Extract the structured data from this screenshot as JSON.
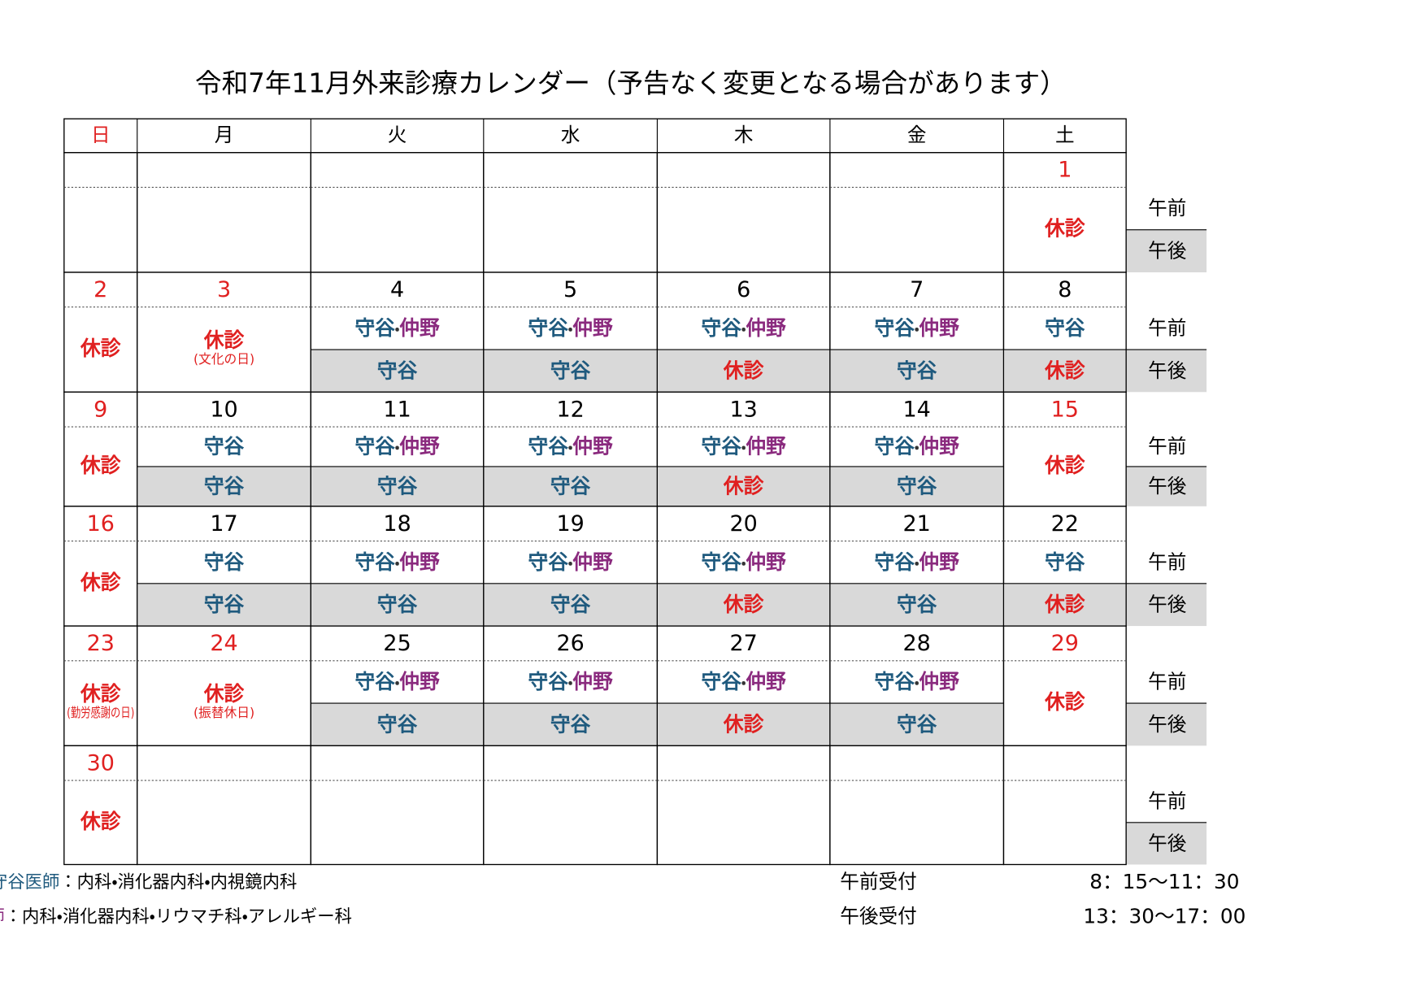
{
  "header": {
    "title": "令和7年11月外来診療カレンダー（予告なく変更となる場合があります）"
  },
  "weekdays": [
    "日",
    "月",
    "火",
    "水",
    "木",
    "金",
    "土"
  ],
  "session_labels": [
    "午前",
    "午後"
  ],
  "colors": {
    "holiday": "#e02020",
    "shade": "#d9d9d9"
  },
  "doctors": [
    {
      "short": "守谷",
      "name": "守谷医師",
      "depts": "：内科・消化器内科・内視鏡内科",
      "color": "#1f5a7e"
    },
    {
      "short": "仲野",
      "name": "仲野医師",
      "depts": "：内科・消化器内科・リウマチ科・アレルギー科",
      "color": "#8a2a7e"
    }
  ],
  "reception": [
    {
      "label": "午前受付",
      "time": "8：15〜11：30"
    },
    {
      "label": "午後受付",
      "time": "13：30〜17：00"
    }
  ],
  "weeks": [
    {
      "days": [
        {},
        {},
        {},
        {},
        {},
        {},
        {
          "date": "1",
          "red": true,
          "closed": "休診"
        }
      ]
    },
    {
      "days": [
        {
          "date": "2",
          "red": true,
          "closed": "休診"
        },
        {
          "date": "3",
          "red": true,
          "closed": "休診",
          "note": "(文化の日)"
        },
        {
          "date": "4",
          "am": "守谷・仲野",
          "pm": "守谷"
        },
        {
          "date": "5",
          "am": "守谷・仲野",
          "pm": "守谷"
        },
        {
          "date": "6",
          "am": "守谷・仲野",
          "pm": "休診"
        },
        {
          "date": "7",
          "am": "守谷・仲野",
          "pm": "守谷"
        },
        {
          "date": "8",
          "am": "守谷",
          "pm": "休診"
        }
      ]
    },
    {
      "days": [
        {
          "date": "9",
          "red": true,
          "closed": "休診"
        },
        {
          "date": "10",
          "am": "守谷",
          "pm": "守谷"
        },
        {
          "date": "11",
          "am": "守谷・仲野",
          "pm": "守谷"
        },
        {
          "date": "12",
          "am": "守谷・仲野",
          "pm": "守谷"
        },
        {
          "date": "13",
          "am": "守谷・仲野",
          "pm": "休診"
        },
        {
          "date": "14",
          "am": "守谷・仲野",
          "pm": "守谷"
        },
        {
          "date": "15",
          "red": true,
          "closed": "休診"
        }
      ]
    },
    {
      "days": [
        {
          "date": "16",
          "red": true,
          "closed": "休診"
        },
        {
          "date": "17",
          "am": "守谷",
          "pm": "守谷"
        },
        {
          "date": "18",
          "am": "守谷・仲野",
          "pm": "守谷"
        },
        {
          "date": "19",
          "am": "守谷・仲野",
          "pm": "守谷"
        },
        {
          "date": "20",
          "am": "守谷・仲野",
          "pm": "休診"
        },
        {
          "date": "21",
          "am": "守谷・仲野",
          "pm": "守谷"
        },
        {
          "date": "22",
          "am": "守谷",
          "pm": "休診"
        }
      ]
    },
    {
      "days": [
        {
          "date": "23",
          "red": true,
          "closed": "休診",
          "note": "(勤労感謝の日)"
        },
        {
          "date": "24",
          "red": true,
          "closed": "休診",
          "note": "(振替休日)"
        },
        {
          "date": "25",
          "am": "守谷・仲野",
          "pm": "守谷"
        },
        {
          "date": "26",
          "am": "守谷・仲野",
          "pm": "守谷"
        },
        {
          "date": "27",
          "am": "守谷・仲野",
          "pm": "休診"
        },
        {
          "date": "28",
          "am": "守谷・仲野",
          "pm": "守谷"
        },
        {
          "date": "29",
          "red": true,
          "closed": "休診"
        }
      ]
    },
    {
      "days": [
        {
          "date": "30",
          "red": true,
          "closed": "休診"
        },
        {},
        {},
        {},
        {},
        {},
        {}
      ]
    }
  ]
}
